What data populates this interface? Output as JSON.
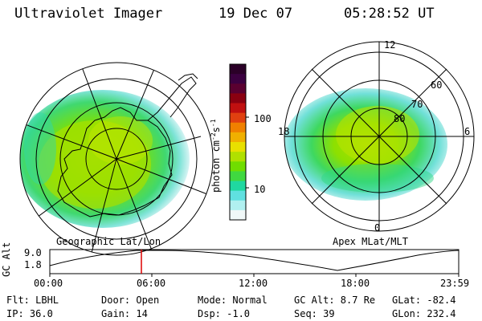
{
  "header": {
    "instrument": "Ultraviolet Imager",
    "date": "19 Dec 07",
    "time": "05:28:52 UT"
  },
  "colorbar": {
    "unit_label": "photon cm",
    "unit_sup1": "-2",
    "unit_mid": "s",
    "unit_sup2": "-1",
    "ticks": [
      "100",
      "10"
    ],
    "colors": [
      "#2b0028",
      "#3b0040",
      "#5a0030",
      "#8a0010",
      "#c01010",
      "#e04010",
      "#f08000",
      "#f0b000",
      "#e8e000",
      "#b0e000",
      "#70dd00",
      "#40d840",
      "#20d8a0",
      "#60e0e0",
      "#b0f0f0",
      "#f0f8f8"
    ]
  },
  "left_panel": {
    "caption": "Geographic Lat/Lon"
  },
  "right_panel": {
    "caption": "Apex MLat/MLT",
    "mlt_labels": {
      "top": "12",
      "left": "18",
      "right": "6",
      "bottom": "0"
    },
    "lat_labels": [
      "60",
      "70",
      "80"
    ]
  },
  "orbit_plot": {
    "ylabel": "GC Alt",
    "yticks": [
      "9.0",
      "1.8"
    ],
    "xticks": [
      "00:00",
      "06:00",
      "12:00",
      "18:00",
      "23:59"
    ],
    "marker_color": "#dd0000"
  },
  "status": {
    "row1": {
      "filter": "Flt: LBHL",
      "door": "Door: Open",
      "mode": "Mode: Normal",
      "gc_alt": "GC Alt: 8.7 Re",
      "glat": "GLat: -82.4"
    },
    "row2": {
      "ip": "IP: 36.0",
      "gain": "Gain: 14",
      "dsp": "Dsp:   -1.0",
      "seq": "Seq: 39",
      "glon": "GLon: 232.4"
    }
  }
}
